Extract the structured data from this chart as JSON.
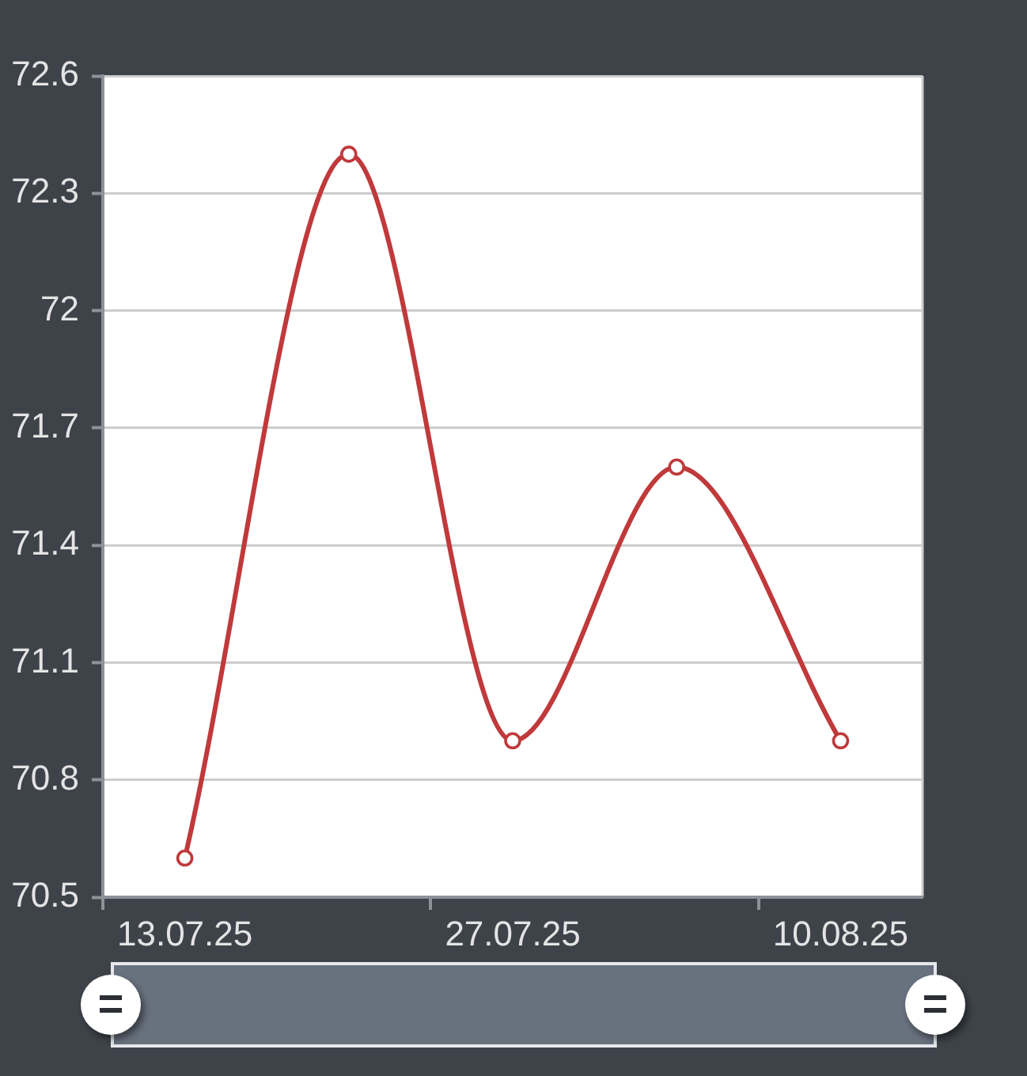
{
  "chart_data": {
    "type": "line",
    "categories": [
      "13.07.25",
      null,
      "27.07.25",
      null,
      "10.08.25"
    ],
    "series": [
      {
        "color": "#c0393b",
        "values": [
          70.6,
          72.4,
          70.9,
          71.6,
          70.9
        ]
      }
    ],
    "ylim": [
      70.5,
      72.6
    ],
    "yticks": [
      70.5,
      70.8,
      71.1,
      71.4,
      71.7,
      72,
      72.3,
      72.6
    ],
    "grid": "y",
    "marker": "circle",
    "line_style": "solid"
  }
}
